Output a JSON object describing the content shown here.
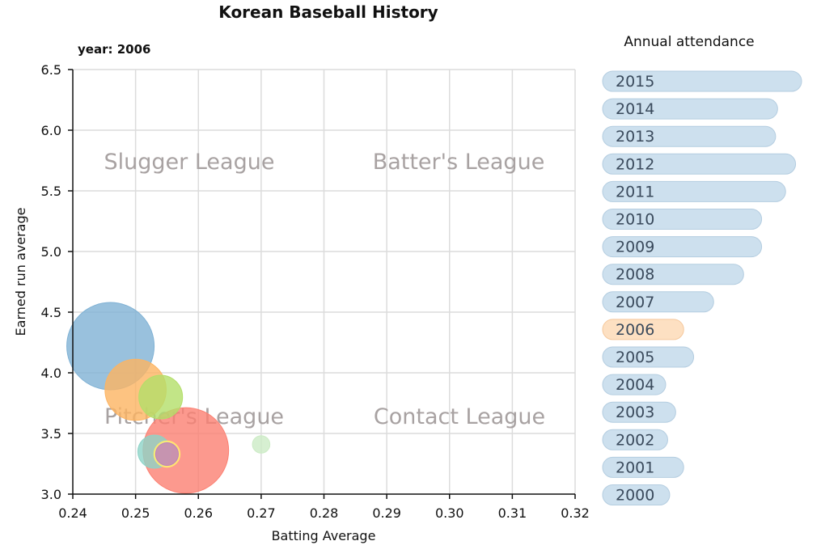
{
  "title": "Korean Baseball History",
  "year_label": "year: 2006",
  "legend_title": "Annual attendance",
  "colors": {
    "pill_default": "#cde0ee",
    "pill_stroke": "#b4cde0",
    "pill_selected": "#fde0c2",
    "pill_selected_stroke": "#f5c89c"
  },
  "chart_data": {
    "type": "scatter",
    "xlabel": "Batting Average",
    "ylabel": "Earned run average",
    "xlim": [
      0.24,
      0.32
    ],
    "ylim": [
      3.0,
      6.5
    ],
    "xticks": [
      "0.24",
      "0.25",
      "0.26",
      "0.27",
      "0.28",
      "0.29",
      "0.30",
      "0.31",
      "0.32"
    ],
    "yticks": [
      "3.0",
      "3.5",
      "4.0",
      "4.5",
      "5.0",
      "5.5",
      "6.0",
      "6.5"
    ],
    "grid": true,
    "quadrant_labels": [
      "Slugger League",
      "Batter's League",
      "Pitcher's League",
      "Contact League"
    ],
    "points": [
      {
        "x": 0.246,
        "y": 4.22,
        "size": 1.0,
        "color": "#7fb1d4"
      },
      {
        "x": 0.258,
        "y": 3.36,
        "size": 0.98,
        "color": "#fb8072"
      },
      {
        "x": 0.25,
        "y": 3.86,
        "size": 0.7,
        "color": "#fdb462"
      },
      {
        "x": 0.254,
        "y": 3.8,
        "size": 0.5,
        "color": "#b3de69"
      },
      {
        "x": 0.253,
        "y": 3.35,
        "size": 0.38,
        "color": "#8dd3c7"
      },
      {
        "x": 0.255,
        "y": 3.33,
        "size": 0.3,
        "color": "#ffed6f"
      },
      {
        "x": 0.255,
        "y": 3.33,
        "size": 0.26,
        "color": "#bc80bd"
      },
      {
        "x": 0.27,
        "y": 3.41,
        "size": 0.2,
        "color": "#ccebc5"
      }
    ]
  },
  "attendance": {
    "selected": "2006",
    "years": [
      {
        "year": "2015",
        "value": 1.0
      },
      {
        "year": "2014",
        "value": 0.88
      },
      {
        "year": "2013",
        "value": 0.87
      },
      {
        "year": "2012",
        "value": 0.97
      },
      {
        "year": "2011",
        "value": 0.92
      },
      {
        "year": "2010",
        "value": 0.8
      },
      {
        "year": "2009",
        "value": 0.8
      },
      {
        "year": "2008",
        "value": 0.71
      },
      {
        "year": "2007",
        "value": 0.56
      },
      {
        "year": "2006",
        "value": 0.41
      },
      {
        "year": "2005",
        "value": 0.46
      },
      {
        "year": "2004",
        "value": 0.32
      },
      {
        "year": "2003",
        "value": 0.37
      },
      {
        "year": "2002",
        "value": 0.33
      },
      {
        "year": "2001",
        "value": 0.41
      },
      {
        "year": "2000",
        "value": 0.34
      }
    ]
  }
}
